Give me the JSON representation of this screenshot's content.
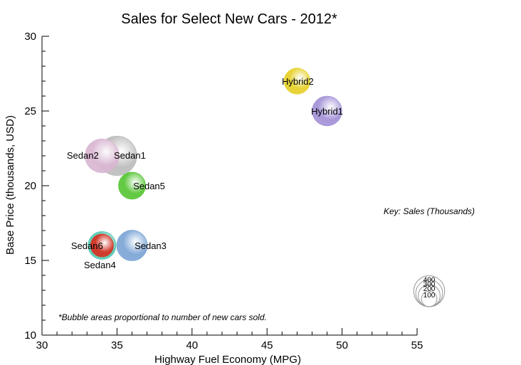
{
  "chart_data": {
    "type": "scatter",
    "title": "Sales for Select New Cars - 2012*",
    "xlabel": "Highway Fuel Economy (MPG)",
    "ylabel": "Base Price (thousands, USD)",
    "xlim": [
      30,
      55
    ],
    "ylim": [
      10,
      30
    ],
    "xticks": [
      30,
      35,
      40,
      45,
      50,
      55
    ],
    "yticks": [
      10,
      15,
      20,
      25,
      30
    ],
    "grid": false,
    "series": [
      {
        "name": "Sedan1",
        "x": 35,
        "y": 22,
        "sales": 300,
        "color": "#bdbdbd"
      },
      {
        "name": "Sedan2",
        "x": 34,
        "y": 22,
        "sales": 220,
        "color": "#d9b6d2"
      },
      {
        "name": "Sedan5",
        "x": 36,
        "y": 20,
        "sales": 140,
        "color": "#59c638"
      },
      {
        "name": "Sedan3",
        "x": 36,
        "y": 16,
        "sales": 180,
        "color": "#7ea6d6"
      },
      {
        "name": "Sedan4",
        "x": 34,
        "y": 16,
        "sales": 150,
        "color": "#58c9b4"
      },
      {
        "name": "Sedan6",
        "x": 34,
        "y": 16,
        "sales": 100,
        "color": "#d63224"
      },
      {
        "name": "Hybrid2",
        "x": 47,
        "y": 27,
        "sales": 130,
        "color": "#e6d12a"
      },
      {
        "name": "Hybrid1",
        "x": 49,
        "y": 25,
        "sales": 170,
        "color": "#a593d8"
      }
    ],
    "key": {
      "title": "Key: Sales (Thousands)",
      "sizes": [
        100,
        200,
        300,
        400
      ]
    },
    "footnote": "*Bubble areas proportional to number of new cars sold."
  }
}
